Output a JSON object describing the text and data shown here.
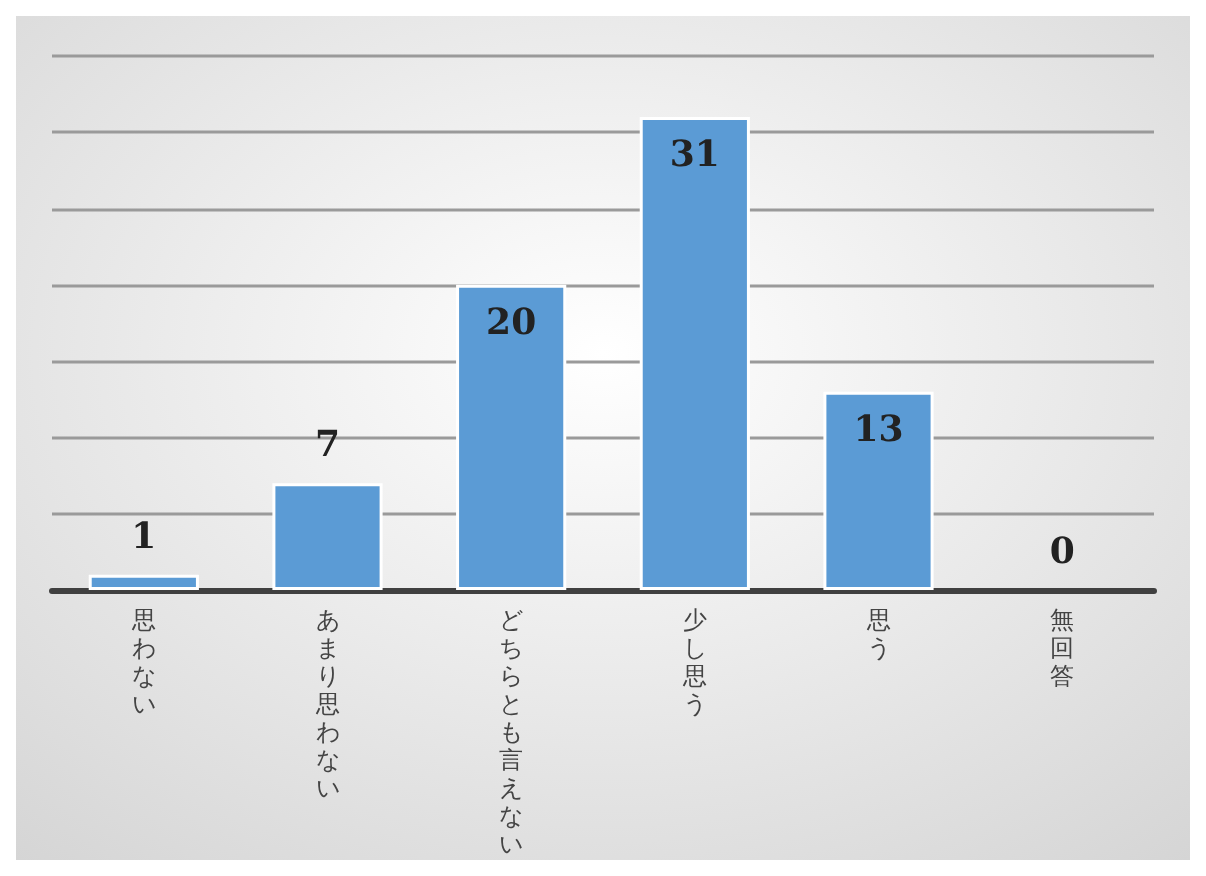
{
  "chart_data": {
    "type": "bar",
    "categories": [
      "思わない",
      "あまり思わない",
      "どちらとも言えない",
      "少し思う",
      "思う",
      "無回答"
    ],
    "values": [
      1,
      7,
      20,
      31,
      13,
      0
    ],
    "color": "#5b9bd5",
    "data_labels": true,
    "ylim": [
      0,
      35
    ],
    "grid": "y",
    "tick_labels": "x"
  }
}
